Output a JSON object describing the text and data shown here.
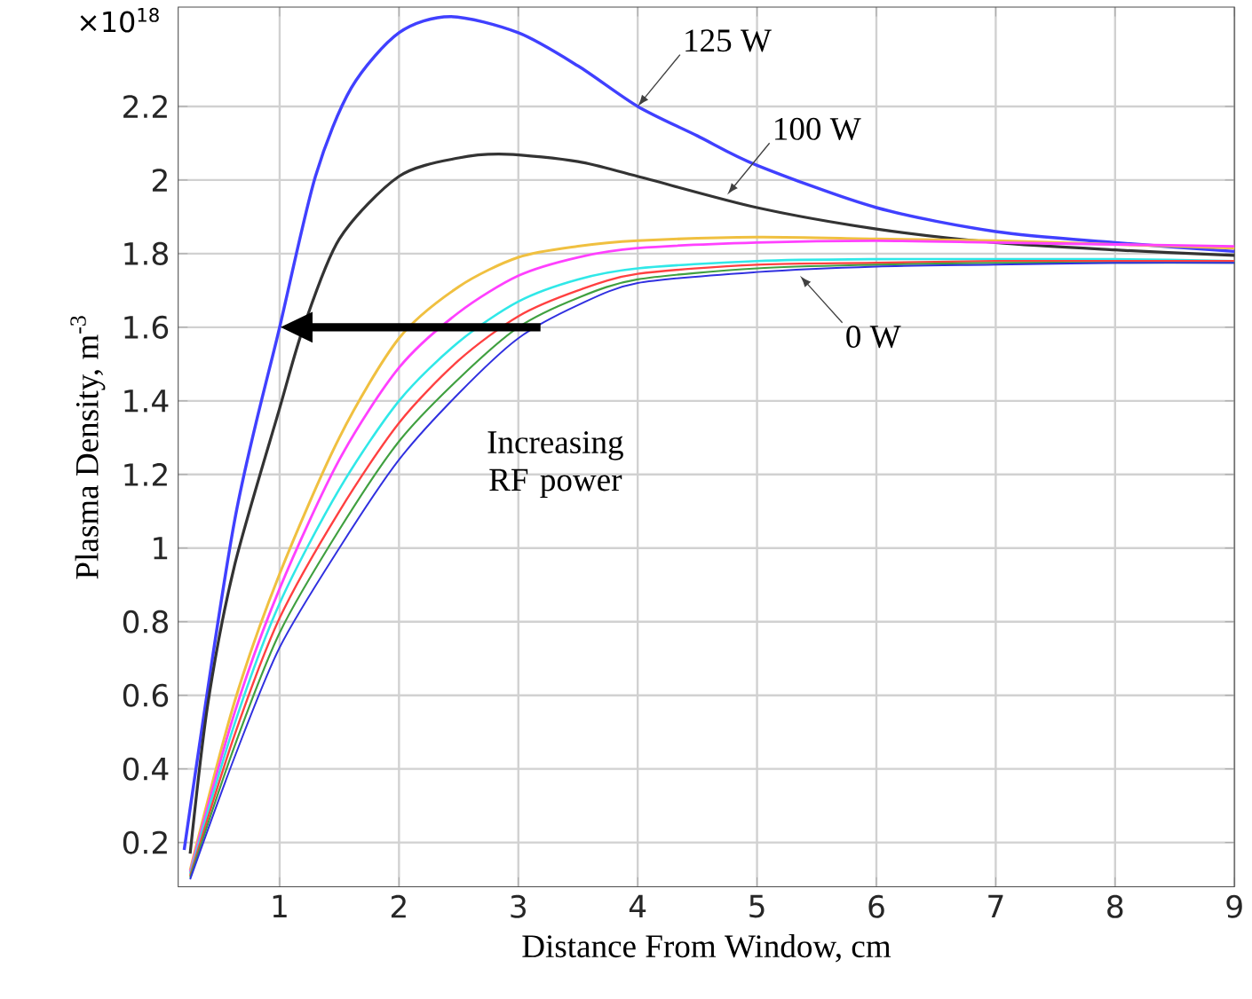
{
  "chart_data": {
    "type": "line",
    "xlabel": "Distance From Window, cm",
    "ylabel": "Plasma Density, m$^{-3}$",
    "xlim": [
      0.15,
      9
    ],
    "ylim": [
      0.08,
      2.47
    ],
    "xticks": [
      1,
      2,
      3,
      4,
      5,
      6,
      7,
      8,
      9
    ],
    "yticks": [
      0.2,
      0.4,
      0.6,
      0.8,
      1,
      1.2,
      1.4,
      1.6,
      1.8,
      2,
      2.2
    ],
    "grid": true,
    "marker": "none",
    "line_style": "solid",
    "series": [
      {
        "color": "#4040ff",
        "x": [
          0.2,
          0.62,
          1,
          1.3,
          1.6,
          2,
          2.43,
          3,
          3.5,
          4,
          4.5,
          5,
          6,
          7,
          8,
          9
        ],
        "values": [
          0.18,
          1.07,
          1.6,
          2.01,
          2.25,
          2.4,
          2.444,
          2.4,
          2.31,
          2.2,
          2.12,
          2.04,
          1.925,
          1.86,
          1.83,
          1.806
        ]
      },
      {
        "color": "#333333",
        "x": [
          0.25,
          0.4,
          0.62,
          1,
          1.2,
          1.5,
          2,
          2.5,
          2.9,
          3.5,
          4,
          5,
          6,
          7,
          8,
          9
        ],
        "values": [
          0.17,
          0.58,
          0.95,
          1.38,
          1.6,
          1.84,
          2.01,
          2.06,
          2.07,
          2.05,
          2.01,
          1.925,
          1.867,
          1.83,
          1.81,
          1.795
        ]
      },
      {
        "color": "#f0c040",
        "x": [
          0.25,
          0.62,
          1,
          1.5,
          2,
          2.5,
          3,
          3.5,
          4,
          5,
          6,
          7,
          8,
          9
        ],
        "values": [
          0.125,
          0.58,
          0.93,
          1.3,
          1.57,
          1.71,
          1.79,
          1.82,
          1.835,
          1.845,
          1.84,
          1.835,
          1.825,
          1.815
        ]
      },
      {
        "color": "#ff40ff",
        "x": [
          0.25,
          0.62,
          1,
          1.5,
          2,
          2.5,
          3,
          3.5,
          4,
          5,
          6,
          7,
          8,
          9
        ],
        "values": [
          0.12,
          0.55,
          0.89,
          1.24,
          1.49,
          1.64,
          1.74,
          1.79,
          1.815,
          1.83,
          1.835,
          1.83,
          1.825,
          1.82
        ]
      },
      {
        "color": "#30e8e8",
        "x": [
          0.25,
          0.62,
          1,
          1.5,
          2,
          2.5,
          3,
          3.5,
          4,
          5,
          6,
          7,
          8,
          9
        ],
        "values": [
          0.115,
          0.52,
          0.85,
          1.16,
          1.4,
          1.56,
          1.67,
          1.73,
          1.76,
          1.78,
          1.785,
          1.785,
          1.785,
          1.78
        ]
      },
      {
        "color": "#ff4040",
        "x": [
          0.25,
          0.62,
          1,
          1.5,
          2,
          2.5,
          3,
          3.5,
          4,
          5,
          6,
          7,
          8,
          9
        ],
        "values": [
          0.11,
          0.49,
          0.81,
          1.1,
          1.34,
          1.51,
          1.63,
          1.7,
          1.745,
          1.77,
          1.775,
          1.78,
          1.78,
          1.78
        ]
      },
      {
        "color": "#40a040",
        "x": [
          0.25,
          0.62,
          1,
          1.5,
          2,
          2.5,
          3,
          3.5,
          4,
          5,
          6,
          7,
          8,
          9
        ],
        "values": [
          0.105,
          0.46,
          0.77,
          1.05,
          1.29,
          1.46,
          1.6,
          1.68,
          1.73,
          1.76,
          1.77,
          1.775,
          1.775,
          1.775
        ]
      },
      {
        "color": "#3030e0",
        "x": [
          0.25,
          0.62,
          1,
          1.5,
          2,
          2.5,
          3,
          3.5,
          4,
          5,
          6,
          7,
          8,
          9
        ],
        "values": [
          0.1,
          0.43,
          0.73,
          1.0,
          1.24,
          1.42,
          1.57,
          1.66,
          1.72,
          1.75,
          1.765,
          1.77,
          1.775,
          1.775
        ]
      }
    ],
    "annotations": [
      "×10$^{18}$",
      "Increasing RF power",
      {
        "text": "125 W",
        "x": 4.0,
        "y": 2.2
      },
      {
        "text": "100 W",
        "x": 4.75,
        "y": 1.96
      },
      {
        "text": "0 W",
        "x": 5.36,
        "y": 1.74
      }
    ]
  }
}
